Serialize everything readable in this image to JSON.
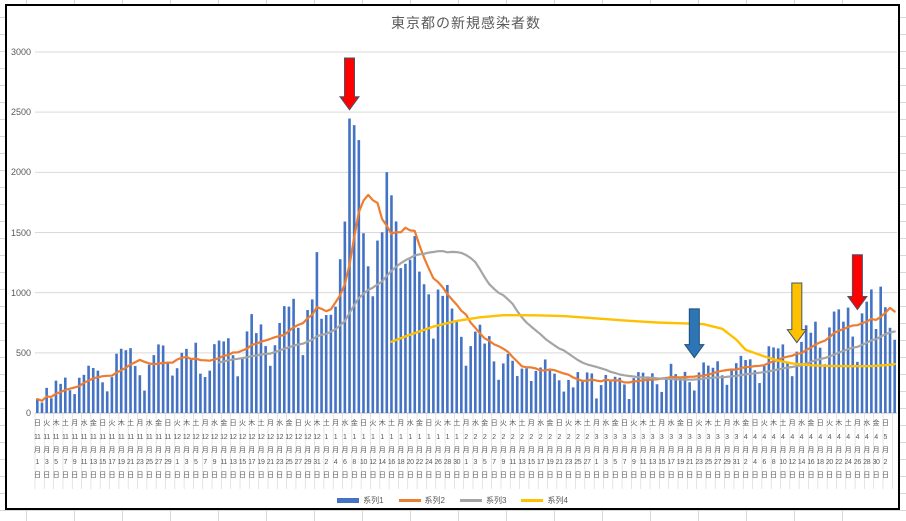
{
  "chart": {
    "title": "東京都の新規感染者数",
    "title_color": "#595959",
    "legend": [
      {
        "label": "系列1",
        "type": "bar",
        "color": "#4472C4"
      },
      {
        "label": "系列2",
        "type": "line",
        "color": "#ED7D31"
      },
      {
        "label": "系列3",
        "type": "line",
        "color": "#A5A5A5"
      },
      {
        "label": "系列4",
        "type": "line",
        "color": "#FFC000"
      }
    ],
    "y_axis": {
      "ticks": [
        0,
        500,
        1000,
        1500,
        2000,
        2500,
        3000
      ]
    },
    "x_axis": {
      "tick_step_days": 2,
      "dow_cycle": "日火木土月水金",
      "month_suffix": "月",
      "day_suffix": "日",
      "months": [
        11,
        11,
        11,
        11,
        11,
        11,
        11,
        11,
        11,
        11,
        11,
        11,
        11,
        11,
        11,
        12,
        12,
        12,
        12,
        12,
        12,
        12,
        12,
        12,
        12,
        12,
        12,
        12,
        12,
        12,
        12,
        1,
        1,
        1,
        1,
        1,
        1,
        1,
        1,
        1,
        1,
        1,
        1,
        1,
        1,
        1,
        2,
        2,
        2,
        2,
        2,
        2,
        2,
        2,
        2,
        2,
        2,
        2,
        2,
        2,
        3,
        3,
        3,
        3,
        3,
        3,
        3,
        3,
        3,
        3,
        3,
        3,
        3,
        3,
        3,
        3,
        4,
        4,
        4,
        4,
        4,
        4,
        4,
        4,
        4,
        4,
        4,
        4,
        4,
        4,
        4,
        5
      ],
      "days": [
        1,
        3,
        5,
        7,
        9,
        11,
        13,
        15,
        17,
        19,
        21,
        23,
        25,
        27,
        29,
        1,
        3,
        5,
        7,
        9,
        11,
        13,
        15,
        17,
        19,
        21,
        23,
        25,
        27,
        29,
        31,
        2,
        4,
        6,
        8,
        10,
        12,
        14,
        16,
        18,
        20,
        22,
        24,
        26,
        28,
        30,
        1,
        3,
        5,
        7,
        9,
        11,
        13,
        15,
        17,
        19,
        21,
        23,
        25,
        27,
        1,
        3,
        5,
        7,
        9,
        11,
        13,
        15,
        17,
        19,
        21,
        23,
        25,
        27,
        29,
        31,
        2,
        4,
        6,
        8,
        10,
        12,
        14,
        16,
        18,
        20,
        22,
        24,
        26,
        28,
        30,
        2
      ]
    }
  },
  "chart_data": {
    "type": "bar",
    "title": "東京都の新規感染者数",
    "ylim": [
      0,
      3000
    ],
    "y_ticks": [
      0,
      500,
      1000,
      1500,
      2000,
      2500,
      3000
    ],
    "x_first_label": "日 11月1日",
    "x_last_label": "日 5月2日",
    "x_tick_step_days": 2,
    "grid": "horizontal",
    "legend_position": "bottom",
    "series": [
      {
        "name": "系列1",
        "type": "bar",
        "color": "#4472C4",
        "values": [
          116,
          87,
          209,
          122,
          269,
          242,
          294,
          189,
          157,
          293,
          317,
          393,
          374,
          352,
          255,
          180,
          298,
          493,
          534,
          522,
          539,
          391,
          314,
          186,
          401,
          481,
          570,
          561,
          418,
          311,
          372,
          500,
          533,
          449,
          584,
          327,
          299,
          352,
          572,
          602,
          595,
          621,
          480,
          305,
          460,
          678,
          822,
          664,
          736,
          556,
          392,
          563,
          748,
          888,
          884,
          949,
          708,
          481,
          856,
          944,
          1337,
          783,
          814,
          816,
          884,
          1278,
          1591,
          2447,
          2392,
          2268,
          1494,
          1219,
          970,
          1433,
          1502,
          2001,
          1809,
          1592,
          1204,
          1240,
          1274,
          1471,
          1175,
          1070,
          986,
          618,
          1026,
          973,
          1064,
          868,
          769,
          633,
          393,
          556,
          676,
          734,
          577,
          639,
          429,
          276,
          412,
          491,
          434,
          307,
          369,
          371,
          266,
          350,
          378,
          445,
          353,
          327,
          272,
          178,
          275,
          213,
          340,
          270,
          337,
          329,
          121,
          232,
          316,
          279,
          301,
          293,
          237,
          116,
          290,
          340,
          335,
          304,
          330,
          239,
          175,
          300,
          409,
          323,
          303,
          342,
          256,
          187,
          337,
          420,
          394,
          376,
          430,
          313,
          234,
          364,
          414,
          475,
          440,
          446,
          355,
          249,
          399,
          555,
          545,
          537,
          570,
          421,
          306,
          510,
          591,
          729,
          667,
          759,
          543,
          405,
          711,
          843,
          861,
          759,
          876,
          635,
          425,
          828,
          925,
          1027,
          698,
          1050,
          879,
          708,
          609
        ]
      },
      {
        "name": "系列2",
        "type": "line",
        "color": "#ED7D31",
        "derivation": "moving_average_of_系列1",
        "window_days": 7,
        "start_index": 0
      },
      {
        "name": "系列3",
        "type": "line",
        "color": "#A5A5A5",
        "derivation": "moving_average_of_系列1",
        "window_days": 28,
        "start_index": 39
      },
      {
        "name": "系列4",
        "type": "line",
        "color": "#FFC000",
        "points_day_index_value": [
          [
            76,
            592
          ],
          [
            80,
            650
          ],
          [
            85,
            718
          ],
          [
            90,
            765
          ],
          [
            95,
            795
          ],
          [
            100,
            813
          ],
          [
            107,
            812
          ],
          [
            113,
            805
          ],
          [
            120,
            786
          ],
          [
            127,
            766
          ],
          [
            133,
            752
          ],
          [
            139,
            745
          ],
          [
            143,
            738
          ],
          [
            147,
            700
          ],
          [
            150,
            610
          ],
          [
            152,
            525
          ],
          [
            156,
            470
          ],
          [
            159,
            435
          ],
          [
            162,
            412
          ],
          [
            166,
            396
          ],
          [
            170,
            391
          ],
          [
            175,
            389
          ],
          [
            179,
            390
          ],
          [
            182,
            397
          ],
          [
            184,
            406
          ]
        ]
      }
    ]
  },
  "annotations": {
    "arrows": [
      {
        "name": "red-arrow-jan-peak",
        "color": "#FF0000",
        "stroke": "#44546A",
        "day_index": 67,
        "top_value": 2950,
        "tip_value": 2520
      },
      {
        "name": "blue-arrow-march",
        "color": "#2E75B6",
        "stroke": "#1F4E79",
        "day_index": 141,
        "top_value": 865,
        "tip_value": 460
      },
      {
        "name": "yellow-arrow-april",
        "color": "#FFC000",
        "stroke": "#44546A",
        "day_index": 163,
        "top_value": 1080,
        "tip_value": 585
      },
      {
        "name": "red-arrow-late-april",
        "color": "#FF0000",
        "stroke": "#44546A",
        "day_index": 176,
        "top_value": 1315,
        "tip_value": 860
      }
    ]
  }
}
